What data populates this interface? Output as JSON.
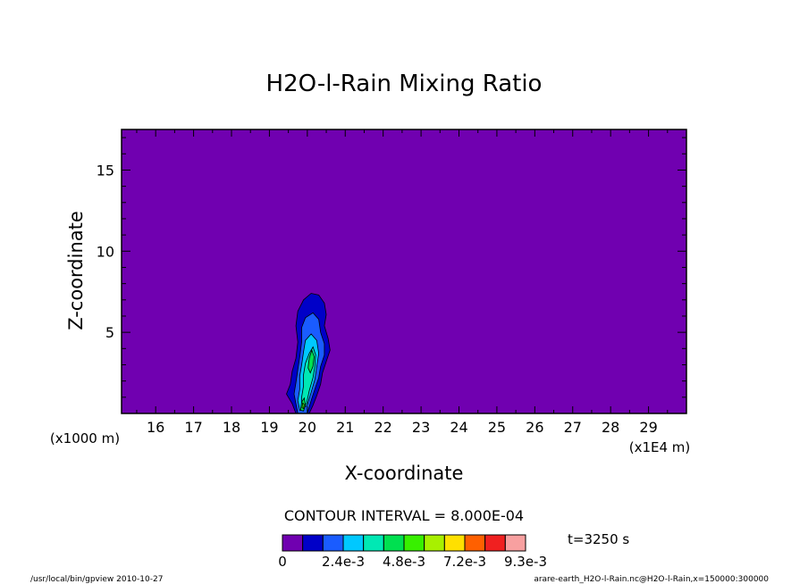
{
  "chart_data": {
    "type": "heatmap",
    "title": "H2O-l-Rain Mixing Ratio",
    "xlabel": "X-coordinate",
    "ylabel": "Z-coordinate",
    "x_unit_label": "(x1E4 m)",
    "y_unit_label": "(x1000 m)",
    "xlim": [
      15.1,
      30.0
    ],
    "ylim": [
      0,
      17.5
    ],
    "x_ticks": [
      "16",
      "17",
      "18",
      "19",
      "20",
      "21",
      "22",
      "23",
      "24",
      "25",
      "26",
      "27",
      "28",
      "29"
    ],
    "y_ticks": [
      "5",
      "10",
      "15"
    ],
    "contour_interval_text": "CONTOUR INTERVAL = 8.000E-04",
    "time_text": "t=3250 s",
    "colorbar": {
      "colors": [
        "#7000b0",
        "#0000c8",
        "#1a5cff",
        "#00c8ff",
        "#00e8b4",
        "#00e050",
        "#38f000",
        "#a8f000",
        "#ffe000",
        "#ff6000",
        "#f02020",
        "#f8a0a0"
      ],
      "labels": [
        "0",
        "2.4e-3",
        "4.8e-3",
        "7.2e-3",
        "9.3e-3"
      ]
    },
    "regions": [
      {
        "level": 1,
        "color": "#0000c8",
        "points": [
          [
            19.7,
            0
          ],
          [
            19.6,
            0.6
          ],
          [
            19.45,
            1.2
          ],
          [
            19.55,
            1.8
          ],
          [
            19.6,
            2.6
          ],
          [
            19.7,
            3.4
          ],
          [
            19.75,
            4.4
          ],
          [
            19.7,
            5.4
          ],
          [
            19.75,
            6.3
          ],
          [
            19.9,
            7.0
          ],
          [
            20.1,
            7.4
          ],
          [
            20.3,
            7.3
          ],
          [
            20.45,
            6.8
          ],
          [
            20.5,
            6.1
          ],
          [
            20.45,
            5.4
          ],
          [
            20.55,
            4.6
          ],
          [
            20.6,
            3.9
          ],
          [
            20.5,
            3.2
          ],
          [
            20.4,
            2.5
          ],
          [
            20.35,
            1.8
          ],
          [
            20.25,
            1.1
          ],
          [
            20.15,
            0.5
          ],
          [
            20.05,
            0
          ]
        ]
      },
      {
        "level": 2,
        "color": "#1a5cff",
        "points": [
          [
            19.75,
            0
          ],
          [
            19.7,
            0.6
          ],
          [
            19.65,
            1.2
          ],
          [
            19.7,
            1.9
          ],
          [
            19.75,
            2.7
          ],
          [
            19.8,
            3.5
          ],
          [
            19.85,
            4.4
          ],
          [
            19.85,
            5.3
          ],
          [
            19.95,
            5.9
          ],
          [
            20.15,
            6.2
          ],
          [
            20.3,
            5.8
          ],
          [
            20.35,
            5.0
          ],
          [
            20.45,
            4.3
          ],
          [
            20.45,
            3.6
          ],
          [
            20.35,
            2.9
          ],
          [
            20.3,
            2.2
          ],
          [
            20.2,
            1.5
          ],
          [
            20.1,
            0.8
          ],
          [
            20.0,
            0
          ]
        ]
      },
      {
        "level": 3,
        "color": "#00c8ff",
        "points": [
          [
            19.8,
            0.2
          ],
          [
            19.75,
            0.8
          ],
          [
            19.8,
            1.5
          ],
          [
            19.8,
            2.3
          ],
          [
            19.85,
            3.0
          ],
          [
            19.9,
            3.8
          ],
          [
            19.95,
            4.5
          ],
          [
            20.1,
            4.9
          ],
          [
            20.25,
            4.5
          ],
          [
            20.3,
            3.7
          ],
          [
            20.25,
            2.9
          ],
          [
            20.2,
            2.1
          ],
          [
            20.1,
            1.3
          ],
          [
            20.0,
            0.5
          ]
        ]
      },
      {
        "level": 4,
        "color": "#00e8b4",
        "points": [
          [
            19.85,
            0.3
          ],
          [
            19.85,
            1.0
          ],
          [
            19.9,
            1.7
          ],
          [
            19.9,
            2.4
          ],
          [
            19.95,
            3.1
          ],
          [
            20.05,
            3.7
          ],
          [
            20.15,
            4.1
          ],
          [
            20.22,
            3.6
          ],
          [
            20.2,
            2.9
          ],
          [
            20.15,
            2.2
          ],
          [
            20.05,
            1.4
          ],
          [
            19.98,
            0.6
          ]
        ]
      },
      {
        "level": 5,
        "color": "#00e050",
        "points": [
          [
            20.02,
            2.8
          ],
          [
            20.05,
            3.4
          ],
          [
            20.12,
            3.9
          ],
          [
            20.18,
            3.5
          ],
          [
            20.15,
            2.9
          ],
          [
            20.08,
            2.5
          ]
        ]
      },
      {
        "level": 5,
        "color": "#00e050",
        "points": [
          [
            19.82,
            0.2
          ],
          [
            19.85,
            0.7
          ],
          [
            19.92,
            0.95
          ],
          [
            19.95,
            0.5
          ],
          [
            19.9,
            0.15
          ]
        ]
      },
      {
        "level": 6,
        "color": "#38f000",
        "points": [
          [
            19.86,
            0.35
          ],
          [
            19.88,
            0.65
          ],
          [
            19.92,
            0.55
          ],
          [
            19.9,
            0.3
          ]
        ]
      }
    ],
    "footer_left": "/usr/local/bin/gpview  2010-10-27",
    "footer_right": "arare-earth_H2O-l-Rain.nc@H2O-l-Rain,x=150000:300000"
  }
}
